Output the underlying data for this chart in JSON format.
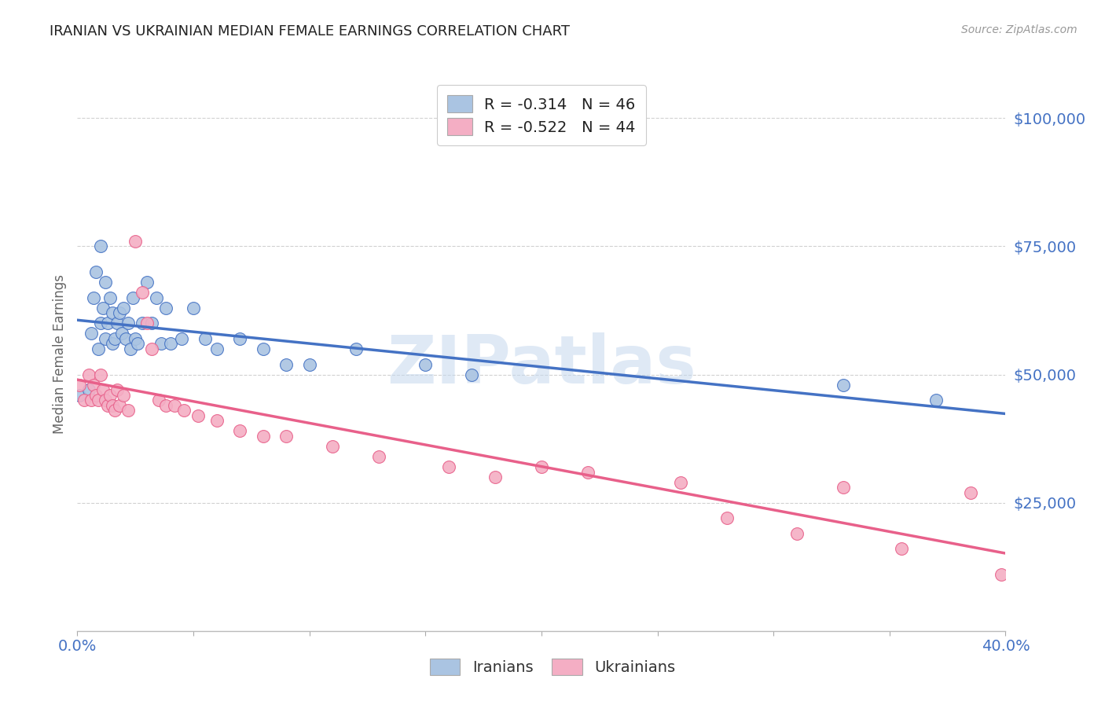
{
  "title": "IRANIAN VS UKRAINIAN MEDIAN FEMALE EARNINGS CORRELATION CHART",
  "source": "Source: ZipAtlas.com",
  "ylabel": "Median Female Earnings",
  "legend_iranian": "R = -0.314   N = 46",
  "legend_ukrainian": "R = -0.522   N = 44",
  "watermark": "ZIPatlas",
  "ytick_labels": [
    "$25,000",
    "$50,000",
    "$75,000",
    "$100,000"
  ],
  "ytick_values": [
    25000,
    50000,
    75000,
    100000
  ],
  "xmin": 0.0,
  "xmax": 0.4,
  "ymin": 0,
  "ymax": 108000,
  "color_iranian": "#aac4e2",
  "color_ukrainian": "#f4aec4",
  "line_color_iranian": "#4472c4",
  "line_color_ukrainian": "#e8608a",
  "background_color": "#ffffff",
  "grid_color": "#cccccc",
  "title_color": "#222222",
  "axis_label_color": "#4472c4",
  "iranian_x": [
    0.001,
    0.005,
    0.006,
    0.007,
    0.008,
    0.009,
    0.01,
    0.01,
    0.011,
    0.012,
    0.012,
    0.013,
    0.014,
    0.015,
    0.015,
    0.016,
    0.017,
    0.018,
    0.019,
    0.02,
    0.021,
    0.022,
    0.023,
    0.024,
    0.025,
    0.026,
    0.028,
    0.03,
    0.032,
    0.034,
    0.036,
    0.038,
    0.04,
    0.045,
    0.05,
    0.055,
    0.06,
    0.07,
    0.08,
    0.09,
    0.1,
    0.12,
    0.15,
    0.17,
    0.33,
    0.37
  ],
  "iranian_y": [
    46000,
    47000,
    58000,
    65000,
    70000,
    55000,
    75000,
    60000,
    63000,
    68000,
    57000,
    60000,
    65000,
    56000,
    62000,
    57000,
    60000,
    62000,
    58000,
    63000,
    57000,
    60000,
    55000,
    65000,
    57000,
    56000,
    60000,
    68000,
    60000,
    65000,
    56000,
    63000,
    56000,
    57000,
    63000,
    57000,
    55000,
    57000,
    55000,
    52000,
    52000,
    55000,
    52000,
    50000,
    48000,
    45000
  ],
  "ukrainian_x": [
    0.001,
    0.003,
    0.005,
    0.006,
    0.007,
    0.008,
    0.009,
    0.01,
    0.011,
    0.012,
    0.013,
    0.014,
    0.015,
    0.016,
    0.017,
    0.018,
    0.02,
    0.022,
    0.025,
    0.028,
    0.03,
    0.032,
    0.035,
    0.038,
    0.042,
    0.046,
    0.052,
    0.06,
    0.07,
    0.08,
    0.09,
    0.11,
    0.13,
    0.16,
    0.18,
    0.2,
    0.22,
    0.26,
    0.28,
    0.31,
    0.33,
    0.355,
    0.385,
    0.398
  ],
  "ukrainian_y": [
    48000,
    45000,
    50000,
    45000,
    48000,
    46000,
    45000,
    50000,
    47000,
    45000,
    44000,
    46000,
    44000,
    43000,
    47000,
    44000,
    46000,
    43000,
    76000,
    66000,
    60000,
    55000,
    45000,
    44000,
    44000,
    43000,
    42000,
    41000,
    39000,
    38000,
    38000,
    36000,
    34000,
    32000,
    30000,
    32000,
    31000,
    29000,
    22000,
    19000,
    28000,
    16000,
    27000,
    11000
  ]
}
